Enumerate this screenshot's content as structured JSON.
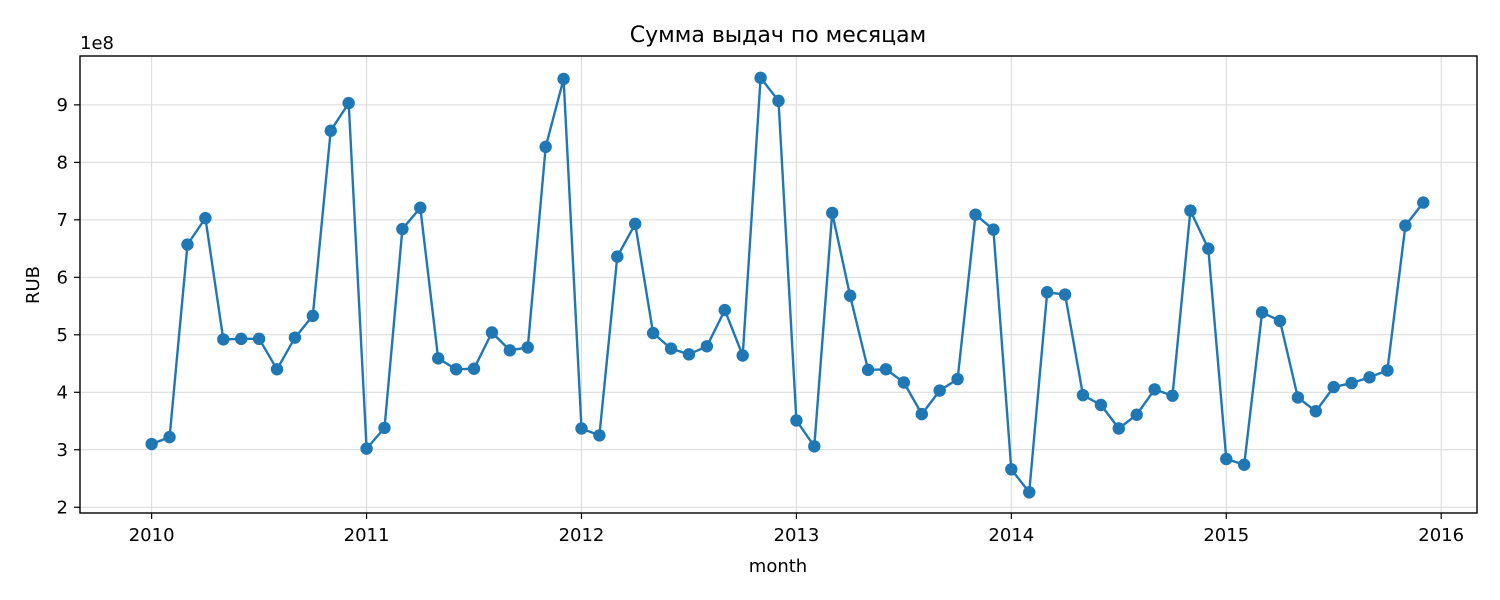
{
  "chart_data": {
    "type": "line",
    "title": "Сумма выдач по месяцам",
    "xlabel": "month",
    "ylabel": "RUB",
    "y_scale_label": "1e8",
    "y_scale": 100000000,
    "xlim": [
      "2009-09",
      "2016-03"
    ],
    "ylim": [
      1.9,
      9.85
    ],
    "x_ticks": [
      "2010",
      "2011",
      "2012",
      "2013",
      "2014",
      "2015",
      "2016"
    ],
    "y_ticks": [
      2,
      3,
      4,
      5,
      6,
      7,
      8,
      9
    ],
    "grid": true,
    "color": "#1f77b4",
    "marker": "circle",
    "x": [
      "2010-01",
      "2010-02",
      "2010-03",
      "2010-04",
      "2010-05",
      "2010-06",
      "2010-07",
      "2010-08",
      "2010-09",
      "2010-10",
      "2010-11",
      "2010-12",
      "2011-01",
      "2011-02",
      "2011-03",
      "2011-04",
      "2011-05",
      "2011-06",
      "2011-07",
      "2011-08",
      "2011-09",
      "2011-10",
      "2011-11",
      "2011-12",
      "2012-01",
      "2012-02",
      "2012-03",
      "2012-04",
      "2012-05",
      "2012-06",
      "2012-07",
      "2012-08",
      "2012-09",
      "2012-10",
      "2012-11",
      "2012-12",
      "2013-01",
      "2013-02",
      "2013-03",
      "2013-04",
      "2013-05",
      "2013-06",
      "2013-07",
      "2013-08",
      "2013-09",
      "2013-10",
      "2013-11",
      "2013-12",
      "2014-01",
      "2014-02",
      "2014-03",
      "2014-04",
      "2014-05",
      "2014-06",
      "2014-07",
      "2014-08",
      "2014-09",
      "2014-10",
      "2014-11",
      "2014-12",
      "2015-01",
      "2015-02",
      "2015-03",
      "2015-04",
      "2015-05",
      "2015-06",
      "2015-07",
      "2015-08",
      "2015-09",
      "2015-10",
      "2015-11",
      "2015-12"
    ],
    "values": [
      3.1,
      3.22,
      6.57,
      7.03,
      4.92,
      4.93,
      4.93,
      4.4,
      4.95,
      5.33,
      8.55,
      9.03,
      3.02,
      3.38,
      6.84,
      7.21,
      4.59,
      4.4,
      4.41,
      5.04,
      4.73,
      4.78,
      8.27,
      9.45,
      3.37,
      3.25,
      6.36,
      6.93,
      5.03,
      4.76,
      4.66,
      4.8,
      5.43,
      4.64,
      9.47,
      9.07,
      3.51,
      3.06,
      7.12,
      5.68,
      4.39,
      4.4,
      4.17,
      3.62,
      4.03,
      4.23,
      7.09,
      6.83,
      2.66,
      2.26,
      5.74,
      5.7,
      3.95,
      3.78,
      3.37,
      3.61,
      4.05,
      3.94,
      7.16,
      6.5,
      2.84,
      2.74,
      5.39,
      5.24,
      3.91,
      3.67,
      4.09,
      4.16,
      4.26,
      4.38,
      6.9,
      7.3
    ]
  }
}
